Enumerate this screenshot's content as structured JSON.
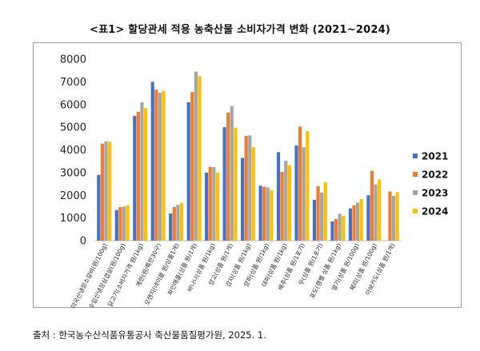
{
  "page": {
    "title": "<표1> 할당관세 적용 농축산물 소비자가격 변화 (2021~2024)",
    "source": "출처 : 한국농수산식품유통공사 축산물품질평가원, 2025. 1."
  },
  "chart_data": {
    "type": "bar",
    "title": "<표1> 할당관세 적용 농축산물 소비자가격 변화 (2021~2024)",
    "xlabel": "",
    "ylabel": "",
    "ylim": [
      0,
      8000
    ],
    "yticks": [
      0,
      1000,
      2000,
      3000,
      4000,
      5000,
      6000,
      7000,
      8000
    ],
    "grid": false,
    "legend_position": "right",
    "categories": [
      "미국산냉장소갈비(원/100g)",
      "수입산냉장삼겹살(원/100g)",
      "닭고기(소비자가격 원/1kg)",
      "계란(원/특란30구)",
      "오렌지(네이블 원/상품1개)",
      "파인애플(상품 원/1개)",
      "바나나(상품 원/1kg)",
      "망고(상품 원/1개)",
      "감자(상품 원/1kg)",
      "양파(상품 원/1kg)",
      "대파(상품 원/1kg)",
      "배추(상품 원/1포기)",
      "무(상품 원/1포기)",
      "포도(캠벨 상품 원/1kg)",
      "딸기(상품 원/100g)",
      "체리(상품 원/100g)",
      "아보카도(상품 원/1개)"
    ],
    "series": [
      {
        "name": "2021",
        "color": "#4472c4",
        "values": [
          2900,
          1350,
          5500,
          7000,
          1200,
          6100,
          3000,
          5000,
          3650,
          2420,
          3900,
          4200,
          1800,
          850,
          1420,
          2000,
          0
        ]
      },
      {
        "name": "2022",
        "color": "#ed7d31",
        "values": [
          4280,
          1480,
          5680,
          6650,
          1480,
          6550,
          3250,
          5650,
          4620,
          2380,
          3030,
          5030,
          2400,
          950,
          1560,
          3080,
          2170
        ]
      },
      {
        "name": "2023",
        "color": "#a5a5a5",
        "values": [
          4380,
          1500,
          6100,
          6520,
          1580,
          7450,
          3240,
          5930,
          4640,
          2350,
          3520,
          4120,
          2120,
          1190,
          1680,
          2480,
          1970
        ]
      },
      {
        "name": "2024",
        "color": "#ffc000",
        "values": [
          4360,
          1560,
          5840,
          6600,
          1660,
          7250,
          3000,
          4980,
          4120,
          2230,
          3330,
          4830,
          2580,
          1090,
          1830,
          2700,
          2140
        ]
      }
    ]
  }
}
